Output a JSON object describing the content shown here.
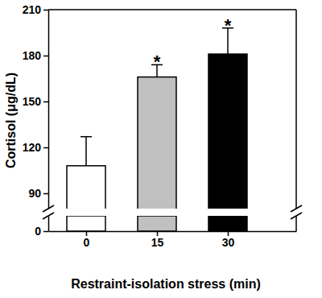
{
  "chart_data": {
    "type": "bar",
    "categories": [
      "0",
      "15",
      "30"
    ],
    "values": [
      108,
      166,
      181
    ],
    "errors": [
      19,
      8,
      17
    ],
    "colors": [
      "#ffffff",
      "#c0c0c0",
      "#000000"
    ],
    "xlabel": "Restraint-isolation stress (min)",
    "ylabel": "Cortisol (μg/dL)",
    "ylim": [
      0,
      210
    ],
    "yticks": [
      0,
      90,
      120,
      150,
      180,
      210
    ],
    "y_break": [
      10,
      80
    ],
    "annotations": [
      {
        "category": "15",
        "text": "*"
      },
      {
        "category": "30",
        "text": "*"
      }
    ],
    "grid": false
  }
}
